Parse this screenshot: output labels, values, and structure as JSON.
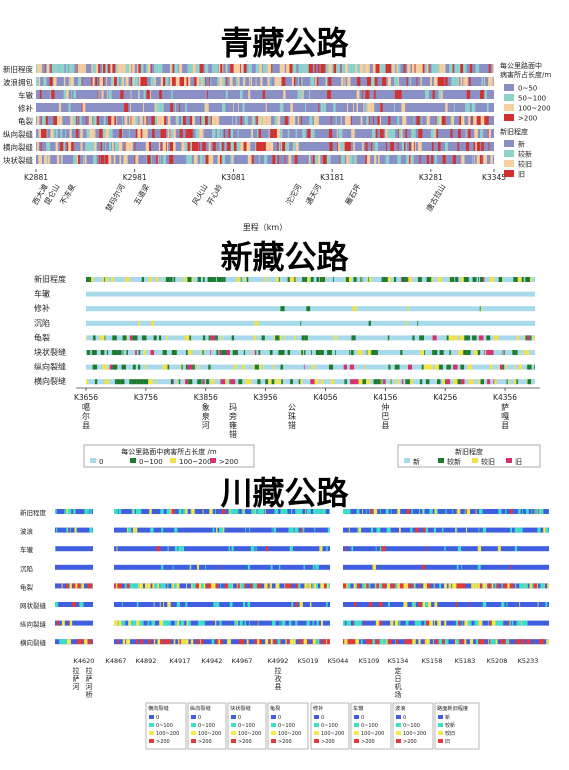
{
  "chart_data": [
    {
      "type": "heatmap",
      "title": "青藏公路",
      "xlabel": "里程（km）",
      "x_range": [
        2881,
        3345
      ],
      "rows": [
        "新旧程度",
        "波浪拥包",
        "车辙",
        "修补",
        "龟裂",
        "纵向裂缝",
        "横向裂缝",
        "块状裂缝"
      ],
      "ticks": [
        {
          "value": 2881,
          "label": "K2881"
        },
        {
          "value": 2981,
          "label": "K2981"
        },
        {
          "value": 3081,
          "label": "K3081"
        },
        {
          "value": 3181,
          "label": "K3181"
        },
        {
          "value": 3281,
          "label": "K3281"
        },
        {
          "value": 3345,
          "label": "K3345"
        }
      ],
      "places": [
        {
          "value": 2893,
          "label": "西大滩"
        },
        {
          "value": 2905,
          "label": "昆仑山"
        },
        {
          "value": 2921,
          "label": "不冻泉"
        },
        {
          "value": 2971,
          "label": "楚玛尔河"
        },
        {
          "value": 2996,
          "label": "五道梁"
        },
        {
          "value": 3055,
          "label": "风火山"
        },
        {
          "value": 3070,
          "label": "开心岭"
        },
        {
          "value": 3150,
          "label": "沱沱河"
        },
        {
          "value": 3170,
          "label": "通天河"
        },
        {
          "value": 3210,
          "label": "雁石坪"
        },
        {
          "value": 3296,
          "label": "唐古拉山"
        }
      ],
      "legend_damage": {
        "title": "每公里路面中病害所占长度/m",
        "items": [
          {
            "label": "0~50",
            "color": "#8a8fc6"
          },
          {
            "label": "50~100",
            "color": "#8fd3cc"
          },
          {
            "label": "100~200",
            "color": "#f5cf9f"
          },
          {
            "label": ">200",
            "color": "#d2322d"
          }
        ]
      },
      "legend_age": {
        "title": "新旧程度",
        "items": [
          {
            "label": "新",
            "color": "#8a8fc6"
          },
          {
            "label": "较新",
            "color": "#8fd3cc"
          },
          {
            "label": "较旧",
            "color": "#f5cf9f"
          },
          {
            "label": "旧",
            "color": "#d2322d"
          }
        ]
      }
    },
    {
      "type": "heatmap",
      "title": "新藏公路",
      "x_range": [
        3656,
        4406
      ],
      "rows": [
        "新旧程度",
        "车辙",
        "修补",
        "沉陷",
        "龟裂",
        "块状裂缝",
        "纵向裂缝",
        "横向裂缝"
      ],
      "ticks": [
        {
          "value": 3656,
          "label": "K3656"
        },
        {
          "value": 3756,
          "label": "K3756"
        },
        {
          "value": 3856,
          "label": "K3856"
        },
        {
          "value": 3956,
          "label": "K3956"
        },
        {
          "value": 4056,
          "label": "K4056"
        },
        {
          "value": 4156,
          "label": "K4156"
        },
        {
          "value": 4256,
          "label": "K4256"
        },
        {
          "value": 4356,
          "label": "K4356"
        }
      ],
      "places": [
        {
          "value": 3656,
          "label": "噶尔县"
        },
        {
          "value": 3856,
          "label": "象泉河"
        },
        {
          "value": 3925,
          "label": "玛旁雍错"
        },
        {
          "value": 4000,
          "label": "公珠错"
        },
        {
          "value": 4156,
          "label": "仲巴县"
        },
        {
          "value": 4356,
          "label": "萨嘎县"
        }
      ],
      "legend_damage": {
        "title": "每公里路面中病害所占长度 /m",
        "items": [
          {
            "label": "0",
            "color": "#a9daec"
          },
          {
            "label": "0~100",
            "color": "#1e7b2e"
          },
          {
            "label": "100~200",
            "color": "#f2e24c"
          },
          {
            "label": ">200",
            "color": "#d6336c"
          }
        ]
      },
      "legend_age": {
        "title": "新旧程度",
        "items": [
          {
            "label": "新",
            "color": "#a9daec"
          },
          {
            "label": "较新",
            "color": "#1e7b2e"
          },
          {
            "label": "较旧",
            "color": "#f2e24c"
          },
          {
            "label": "旧",
            "color": "#d6336c"
          }
        ]
      }
    },
    {
      "type": "heatmap",
      "title": "川藏公路",
      "rows": [
        "新旧程度",
        "波浪",
        "车辙",
        "沉陷",
        "龟裂",
        "网状裂缝",
        "纵向裂缝",
        "横向裂缝"
      ],
      "ticks": [
        {
          "label": "K4620"
        },
        {
          "label": "K4867"
        },
        {
          "label": "K4892"
        },
        {
          "label": "K4917"
        },
        {
          "label": "K4942"
        },
        {
          "label": "K4967"
        },
        {
          "label": "K4992"
        },
        {
          "label": "K5019"
        },
        {
          "label": "K5044"
        },
        {
          "label": "K5109"
        },
        {
          "label": "K5134"
        },
        {
          "label": "K5158"
        },
        {
          "label": "K5183"
        },
        {
          "label": "K5208"
        },
        {
          "label": "K5233"
        }
      ],
      "places": [
        {
          "tick": 0,
          "label": "拉萨河"
        },
        {
          "tick": 0,
          "label": "拉萨河桥"
        },
        {
          "tick": 6,
          "label": "拉孜县"
        },
        {
          "tick": 10,
          "label": "定日机场"
        }
      ],
      "legends": [
        {
          "title": "横向裂缝",
          "items": [
            "0",
            "0~100",
            "100~200",
            ">200"
          ]
        },
        {
          "title": "纵向裂缝",
          "items": [
            "0",
            "0~100",
            "100~200",
            ">200"
          ]
        },
        {
          "title": "块状裂缝",
          "items": [
            "0",
            "0~100",
            "100~200",
            ">200"
          ]
        },
        {
          "title": "龟裂",
          "items": [
            "0",
            "0~100",
            "100~200",
            ">200"
          ]
        },
        {
          "title": "修补",
          "items": [
            "0",
            "0~100",
            "100~200",
            ">200"
          ]
        },
        {
          "title": "车辙",
          "items": [
            "0",
            "0~100",
            "100~200",
            ">200"
          ]
        },
        {
          "title": "波浪",
          "items": [
            "0",
            "0~100",
            "100~200",
            ">200"
          ]
        },
        {
          "title": "路面新旧程度",
          "items": [
            "新",
            "较新",
            "较旧",
            "旧"
          ]
        }
      ],
      "colors": [
        "#3f5fe0",
        "#3ee0c8",
        "#f4e84a",
        "#e23a3a"
      ]
    }
  ]
}
